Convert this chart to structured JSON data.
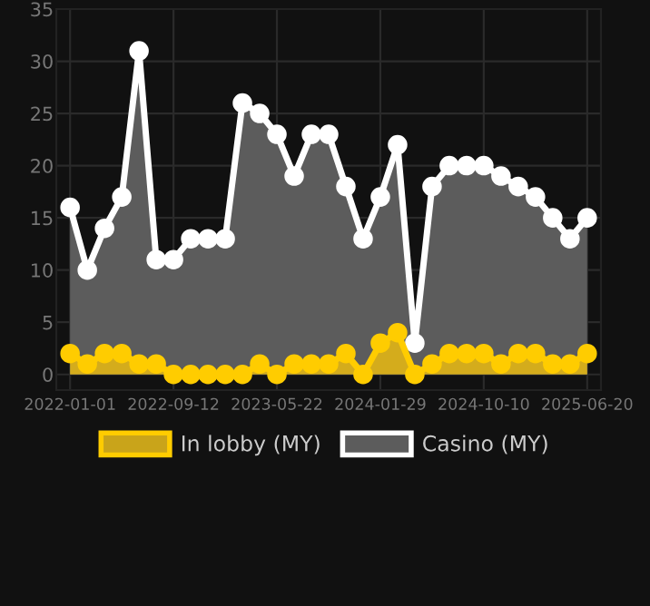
{
  "chart_data": {
    "type": "area",
    "categories": [
      "2022-01-01",
      null,
      null,
      null,
      null,
      null,
      "2022-09-12",
      null,
      null,
      null,
      null,
      null,
      "2023-05-22",
      null,
      null,
      null,
      null,
      null,
      "2024-01-29",
      null,
      null,
      null,
      null,
      null,
      "2024-10-10",
      null,
      null,
      null,
      null,
      null,
      "2025-06-20"
    ],
    "series": [
      {
        "name": "In lobby (MY)",
        "color": "#ffcc00",
        "values": [
          2,
          1,
          2,
          2,
          1,
          1,
          0,
          0,
          0,
          0,
          0,
          1,
          0,
          1,
          1,
          1,
          2,
          0,
          3,
          4,
          0,
          1,
          2,
          2,
          2,
          1,
          2,
          2,
          1,
          1,
          2
        ]
      },
      {
        "name": "Casino (MY)",
        "color": "#ffffff",
        "values": [
          16,
          10,
          14,
          17,
          31,
          11,
          11,
          13,
          13,
          13,
          26,
          25,
          23,
          19,
          23,
          23,
          18,
          13,
          17,
          22,
          3,
          18,
          20,
          20,
          20,
          19,
          18,
          17,
          15,
          13,
          15
        ]
      }
    ],
    "ylim": [
      -1.5,
      35
    ],
    "yticks": [
      0,
      5,
      10,
      15,
      20,
      25,
      30,
      35
    ],
    "grid": true,
    "legend": "bottom",
    "marker": "circle",
    "line_style": "solid"
  }
}
